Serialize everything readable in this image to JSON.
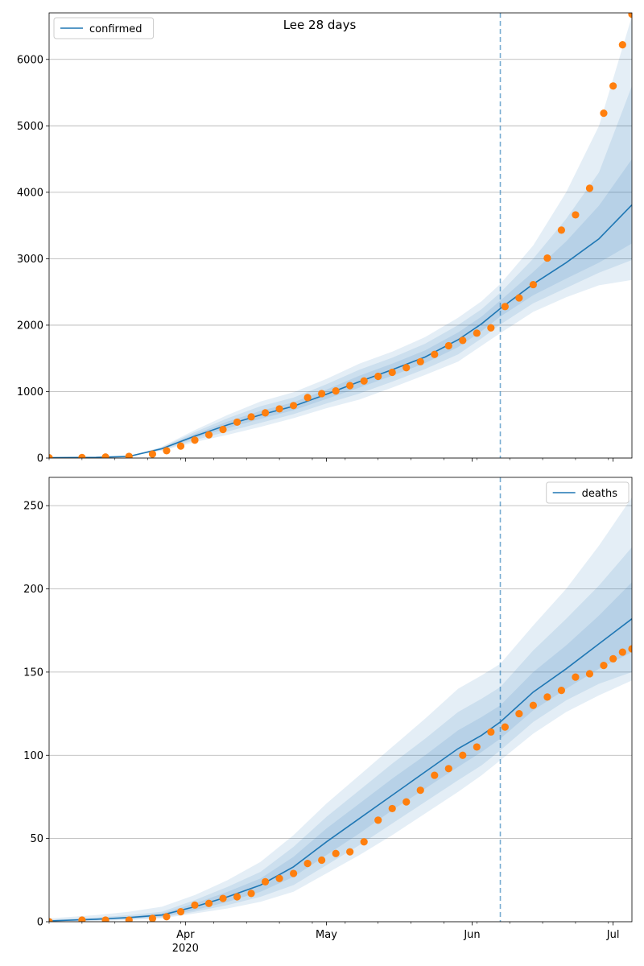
{
  "title": "Lee 28 days",
  "colors": {
    "model_line": "#1f77b4",
    "band": "#1f77b4",
    "observed": "#ff7f0e",
    "grid": "#b0b0b0",
    "cutoff_line": "#1f77b4"
  },
  "chart_data": [
    {
      "type": "line",
      "panel": "top",
      "legend": {
        "entry": "confirmed",
        "placement": "top-left"
      },
      "xlim": [
        "2020-03-03",
        "2020-07-05"
      ],
      "ylim": [
        0,
        6700
      ],
      "yticks": [
        0,
        1000,
        2000,
        3000,
        4000,
        5000,
        6000
      ],
      "xticks": [
        {
          "date": "2020-04-01",
          "label": "Apr",
          "sublabel": "2020"
        },
        {
          "date": "2020-05-01",
          "label": "May",
          "sublabel": ""
        },
        {
          "date": "2020-06-01",
          "label": "Jun",
          "sublabel": ""
        },
        {
          "date": "2020-07-01",
          "label": "Jul",
          "sublabel": ""
        }
      ],
      "grid": "y",
      "cutoff_date": "2020-06-07",
      "series": [
        {
          "name": "confirmed",
          "kind": "model",
          "x": [
            "2020-03-03",
            "2020-03-13",
            "2020-03-20",
            "2020-03-27",
            "2020-04-03",
            "2020-04-10",
            "2020-04-17",
            "2020-04-24",
            "2020-05-01",
            "2020-05-08",
            "2020-05-15",
            "2020-05-22",
            "2020-05-29",
            "2020-06-03",
            "2020-06-07",
            "2020-06-14",
            "2020-06-21",
            "2020-06-28",
            "2020-07-05"
          ],
          "median": [
            5,
            10,
            25,
            140,
            330,
            500,
            650,
            780,
            960,
            1150,
            1330,
            1520,
            1780,
            2020,
            2250,
            2620,
            2940,
            3300,
            3810
          ],
          "bands": [
            {
              "lower": [
                5,
                10,
                25,
                130,
                300,
                450,
                590,
                720,
                890,
                1060,
                1240,
                1430,
                1670,
                1910,
                2130,
                2450,
                2700,
                2940,
                3230
              ],
              "upper": [
                5,
                10,
                25,
                150,
                360,
                550,
                710,
                840,
                1030,
                1240,
                1420,
                1620,
                1890,
                2130,
                2370,
                2800,
                3260,
                3800,
                4500
              ]
            },
            {
              "lower": [
                5,
                10,
                25,
                120,
                270,
                400,
                530,
                660,
                820,
                970,
                1150,
                1340,
                1560,
                1800,
                2010,
                2330,
                2560,
                2790,
                2980
              ],
              "upper": [
                5,
                10,
                25,
                160,
                390,
                600,
                780,
                910,
                1110,
                1330,
                1510,
                1720,
                2000,
                2240,
                2490,
                3000,
                3600,
                4300,
                5600
              ]
            },
            {
              "lower": [
                5,
                10,
                25,
                110,
                240,
                350,
                470,
                600,
                750,
                880,
                1060,
                1250,
                1450,
                1690,
                1880,
                2200,
                2420,
                2600,
                2680
              ],
              "upper": [
                5,
                10,
                25,
                170,
                420,
                650,
                850,
                990,
                1190,
                1420,
                1600,
                1820,
                2110,
                2360,
                2620,
                3200,
                4000,
                5000,
                6650
              ]
            }
          ]
        },
        {
          "name": "",
          "kind": "observed",
          "x": [
            "2020-03-03",
            "2020-03-10",
            "2020-03-15",
            "2020-03-20",
            "2020-03-25",
            "2020-03-28",
            "2020-03-31",
            "2020-04-03",
            "2020-04-06",
            "2020-04-09",
            "2020-04-12",
            "2020-04-15",
            "2020-04-18",
            "2020-04-21",
            "2020-04-24",
            "2020-04-27",
            "2020-04-30",
            "2020-05-03",
            "2020-05-06",
            "2020-05-09",
            "2020-05-12",
            "2020-05-15",
            "2020-05-18",
            "2020-05-21",
            "2020-05-24",
            "2020-05-27",
            "2020-05-30",
            "2020-06-02",
            "2020-06-05",
            "2020-06-08",
            "2020-06-11",
            "2020-06-14",
            "2020-06-17",
            "2020-06-20",
            "2020-06-23",
            "2020-06-26",
            "2020-06-29",
            "2020-07-01",
            "2020-07-03",
            "2020-07-05"
          ],
          "y": [
            5,
            8,
            15,
            25,
            60,
            110,
            180,
            270,
            350,
            430,
            540,
            620,
            680,
            740,
            790,
            910,
            970,
            1010,
            1090,
            1160,
            1230,
            1290,
            1360,
            1450,
            1560,
            1690,
            1770,
            1880,
            1960,
            2280,
            2410,
            2610,
            3010,
            3430,
            3660,
            4060,
            5190,
            5600,
            6220,
            6680
          ]
        }
      ]
    },
    {
      "type": "line",
      "panel": "bottom",
      "legend": {
        "entry": "deaths",
        "placement": "top-right"
      },
      "xlim": [
        "2020-03-03",
        "2020-07-05"
      ],
      "ylim": [
        0,
        267
      ],
      "yticks": [
        0,
        50,
        100,
        150,
        200,
        250
      ],
      "xticks": [
        {
          "date": "2020-04-01",
          "label": "Apr",
          "sublabel": "2020"
        },
        {
          "date": "2020-05-01",
          "label": "May",
          "sublabel": ""
        },
        {
          "date": "2020-06-01",
          "label": "Jun",
          "sublabel": ""
        },
        {
          "date": "2020-07-01",
          "label": "Jul",
          "sublabel": ""
        }
      ],
      "grid": "y",
      "cutoff_date": "2020-06-07",
      "series": [
        {
          "name": "deaths",
          "kind": "model",
          "x": [
            "2020-03-03",
            "2020-03-13",
            "2020-03-20",
            "2020-03-27",
            "2020-04-03",
            "2020-04-10",
            "2020-04-17",
            "2020-04-24",
            "2020-05-01",
            "2020-05-08",
            "2020-05-15",
            "2020-05-22",
            "2020-05-29",
            "2020-06-03",
            "2020-06-07",
            "2020-06-14",
            "2020-06-21",
            "2020-06-28",
            "2020-07-05"
          ],
          "median": [
            0.5,
            1.5,
            2.5,
            4,
            9,
            15,
            22,
            33,
            48,
            62,
            76,
            90,
            104,
            112,
            120,
            138,
            152,
            167,
            182
          ],
          "bands": [
            {
              "lower": [
                0.3,
                1,
                2,
                3,
                7,
                12,
                18,
                27,
                40,
                53,
                67,
                80,
                93,
                102,
                110,
                127,
                140,
                152,
                162
              ],
              "upper": [
                0.8,
                2,
                3,
                5,
                11,
                18,
                26,
                39,
                56,
                71,
                86,
                100,
                115,
                123,
                130,
                150,
                166,
                184,
                204
              ]
            },
            {
              "lower": [
                0.2,
                0.8,
                1.5,
                2.5,
                6,
                10,
                15,
                22,
                34,
                46,
                59,
                72,
                85,
                94,
                103,
                120,
                133,
                143,
                150
              ],
              "upper": [
                1.2,
                2.5,
                4,
                6,
                13,
                21,
                30,
                45,
                63,
                79,
                95,
                110,
                126,
                134,
                141,
                163,
                182,
                202,
                225
              ]
            },
            {
              "lower": [
                0,
                0.5,
                1,
                2,
                5,
                8,
                12,
                18,
                29,
                40,
                52,
                65,
                78,
                88,
                97,
                113,
                126,
                136,
                145
              ],
              "upper": [
                2,
                4,
                6,
                9,
                16,
                25,
                36,
                52,
                71,
                88,
                105,
                122,
                140,
                148,
                155,
                178,
                200,
                226,
                255
              ]
            }
          ]
        },
        {
          "name": "",
          "kind": "observed",
          "x": [
            "2020-03-03",
            "2020-03-10",
            "2020-03-15",
            "2020-03-20",
            "2020-03-25",
            "2020-03-28",
            "2020-03-31",
            "2020-04-03",
            "2020-04-06",
            "2020-04-09",
            "2020-04-12",
            "2020-04-15",
            "2020-04-18",
            "2020-04-21",
            "2020-04-24",
            "2020-04-27",
            "2020-04-30",
            "2020-05-03",
            "2020-05-06",
            "2020-05-09",
            "2020-05-12",
            "2020-05-15",
            "2020-05-18",
            "2020-05-21",
            "2020-05-24",
            "2020-05-27",
            "2020-05-30",
            "2020-06-02",
            "2020-06-05",
            "2020-06-08",
            "2020-06-11",
            "2020-06-14",
            "2020-06-17",
            "2020-06-20",
            "2020-06-23",
            "2020-06-26",
            "2020-06-29",
            "2020-07-01",
            "2020-07-03",
            "2020-07-05"
          ],
          "y": [
            0,
            1,
            1,
            1,
            2,
            3,
            6,
            10,
            11,
            14,
            15,
            17,
            24,
            26,
            29,
            35,
            37,
            41,
            42,
            48,
            61,
            68,
            72,
            79,
            88,
            92,
            100,
            105,
            114,
            117,
            125,
            130,
            135,
            139,
            147,
            149,
            154,
            158,
            162,
            164
          ]
        }
      ]
    }
  ]
}
